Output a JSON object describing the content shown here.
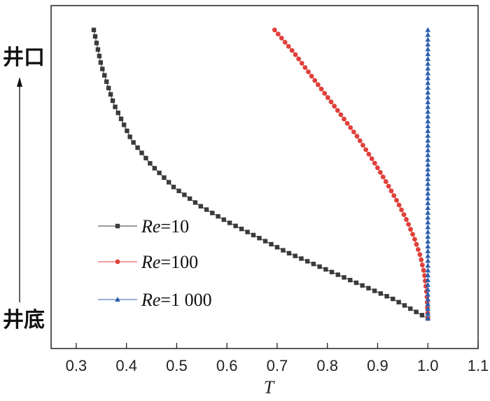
{
  "chart_data": {
    "type": "line",
    "xlabel": "T",
    "ylabel": "",
    "xlim": [
      0.25,
      1.1
    ],
    "ylim": [
      0,
      1
    ],
    "x_ticks": [
      "0.3",
      "0.4",
      "0.5",
      "0.6",
      "0.7",
      "0.8",
      "0.9",
      "1.0",
      "1.1"
    ],
    "x_tick_values": [
      0.3,
      0.4,
      0.5,
      0.6,
      0.7,
      0.8,
      0.9,
      1.0,
      1.1
    ],
    "y_top_label": "井口",
    "y_bottom_label": "井底",
    "legend_position": "middle-left",
    "series": [
      {
        "name": "Re=10",
        "name_italic": "Re",
        "name_rest": "=10",
        "color": "#3a3a3a",
        "marker": "square",
        "x": [
          1.0,
          0.93,
          0.86,
          0.79,
          0.72,
          0.66,
          0.6,
          0.545,
          0.495,
          0.45,
          0.41,
          0.375,
          0.35,
          0.335
        ],
        "y": [
          0.0,
          0.066,
          0.118,
          0.17,
          0.222,
          0.274,
          0.326,
          0.38,
          0.44,
          0.515,
          0.6,
          0.72,
          0.85,
          0.97
        ]
      },
      {
        "name": "Re=100",
        "name_italic": "Re",
        "name_rest": "=100",
        "color": "#e0403a",
        "marker": "circle",
        "x": [
          1.0,
          0.998,
          0.993,
          0.985,
          0.973,
          0.958,
          0.94,
          0.92,
          0.895,
          0.86,
          0.82,
          0.775,
          0.735,
          0.695
        ],
        "y": [
          0.0,
          0.08,
          0.15,
          0.21,
          0.27,
          0.33,
          0.39,
          0.45,
          0.52,
          0.61,
          0.7,
          0.8,
          0.89,
          0.97
        ]
      },
      {
        "name": "Re=1 000",
        "name_italic": "Re",
        "name_rest": "=1 000",
        "color": "#2c5fb0",
        "marker": "triangle",
        "x": [
          1.0,
          1.0,
          1.0,
          1.0,
          1.0,
          1.0
        ],
        "y": [
          0.0,
          0.2,
          0.4,
          0.6,
          0.8,
          0.97
        ]
      }
    ]
  }
}
